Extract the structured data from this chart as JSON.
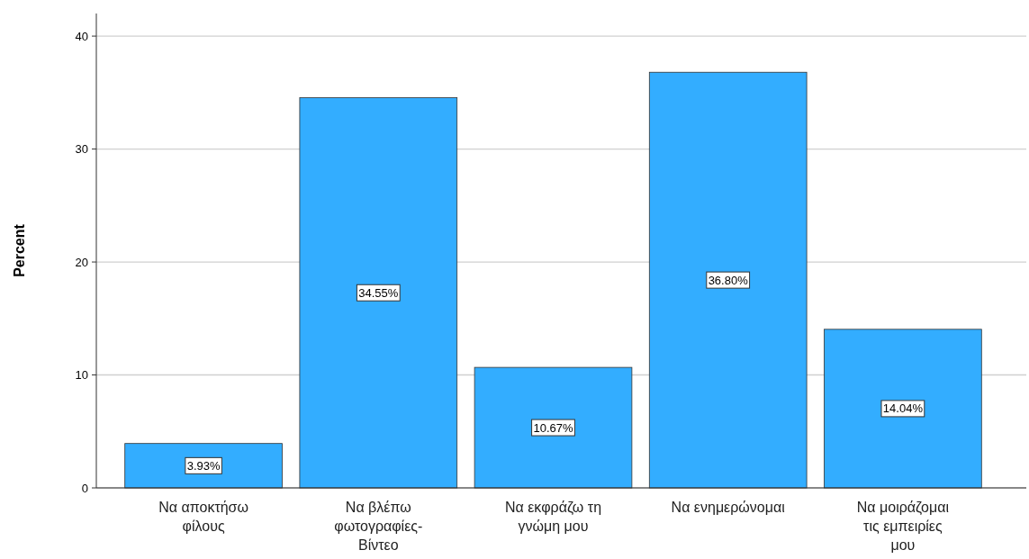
{
  "chart_data": {
    "type": "bar",
    "ylabel": "Percent",
    "categories": [
      "Να αποκτήσω φίλους",
      "Να βλέπω φωτογραφίες-Βίντεο",
      "Να εκφράζω τη γνώμη μου",
      "Να ενημερώνομαι",
      "Να μοιράζομαι τις εμπειρίες μου"
    ],
    "values": [
      3.93,
      34.55,
      10.67,
      36.8,
      14.04
    ],
    "value_labels": [
      "3.93%",
      "34.55%",
      "10.67%",
      "36.80%",
      "14.04%"
    ],
    "color": "#33adff",
    "ylim": [
      0,
      42
    ],
    "yticks": [
      0,
      10,
      20,
      30,
      40
    ],
    "grid": "y"
  }
}
